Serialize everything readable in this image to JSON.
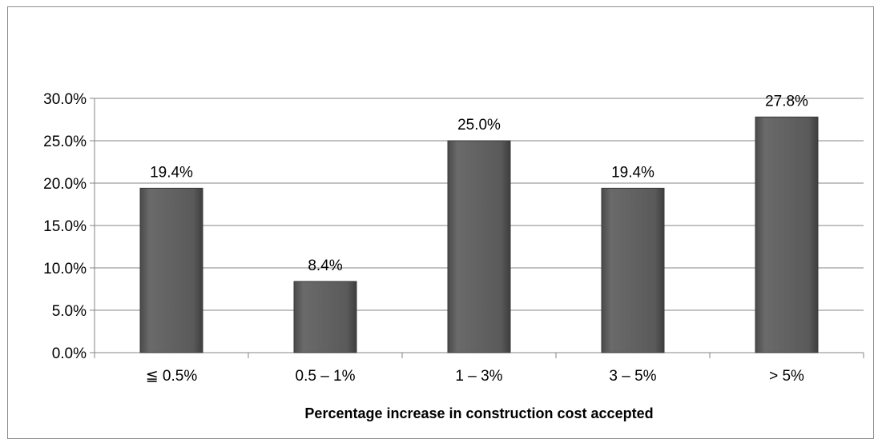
{
  "chart_data": {
    "type": "bar",
    "categories": [
      "≦ 0.5%",
      "0.5 – 1%",
      "1 – 3%",
      "3 – 5%",
      "> 5%"
    ],
    "values": [
      19.4,
      8.4,
      25.0,
      19.4,
      27.8
    ],
    "data_labels": [
      "19.4%",
      "8.4%",
      "25.0%",
      "19.4%",
      "27.8%"
    ],
    "title": "",
    "xlabel": "Percentage increase in construction cost accepted",
    "ylabel": "",
    "ylim": [
      0,
      30
    ],
    "yticks": [
      0,
      5,
      10,
      15,
      20,
      25,
      30
    ],
    "ytick_labels": [
      "0.0%",
      "5.0%",
      "10.0%",
      "15.0%",
      "20.0%",
      "25.0%",
      "30.0%"
    ],
    "grid": true,
    "legend": "none",
    "colors": {
      "bar": "#595959",
      "bar_edge": "#3a3a3a",
      "grid": "#868686",
      "axis": "#868686"
    }
  }
}
